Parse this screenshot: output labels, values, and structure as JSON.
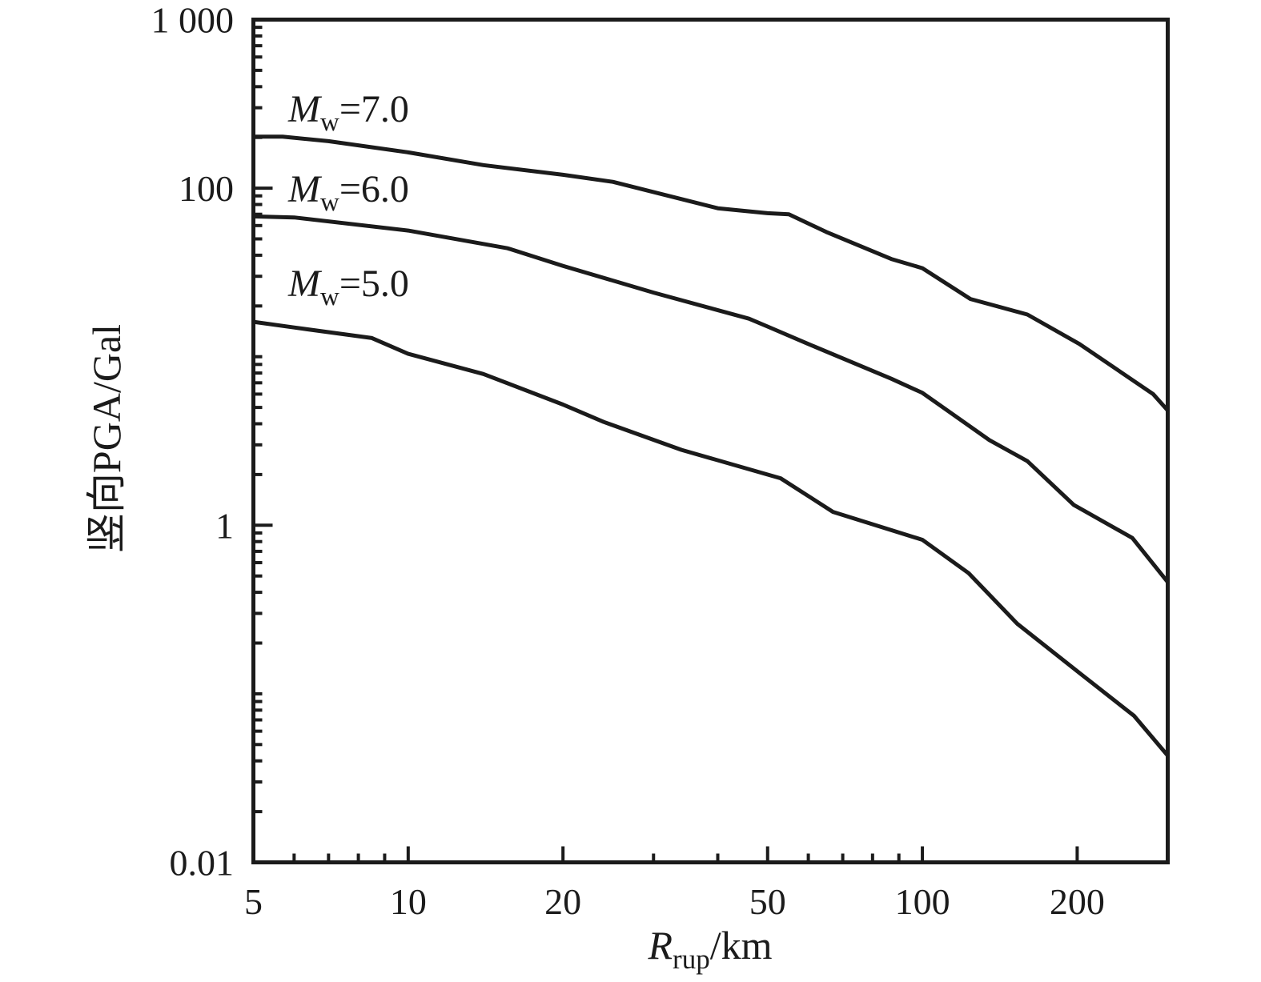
{
  "figure": {
    "background": "#ffffff",
    "ink_color": "#1b1b1b"
  },
  "chart_data": {
    "type": "line",
    "x_scale": "log",
    "y_scale": "log",
    "xlim": [
      5,
      300
    ],
    "ylim": [
      0.01,
      1000
    ],
    "grid": false,
    "legend": "inline-labels",
    "xlabel": {
      "var": "R",
      "sub": "rup",
      "rest": "/km"
    },
    "ylabel": "竖向PGA/Gal",
    "x_ticks": [
      {
        "value": 5,
        "label": "5"
      },
      {
        "value": 10,
        "label": "10"
      },
      {
        "value": 20,
        "label": "20"
      },
      {
        "value": 50,
        "label": "50"
      },
      {
        "value": 100,
        "label": "100"
      },
      {
        "value": 200,
        "label": "200"
      }
    ],
    "y_ticks": [
      {
        "value": 1000,
        "label": "1 000"
      },
      {
        "value": 100,
        "label": "100"
      },
      {
        "value": 1,
        "label": "1"
      },
      {
        "value": 0.01,
        "label": "0.01"
      }
    ],
    "series": [
      {
        "name": "Mw=7.0",
        "label": {
          "var": "M",
          "sub": "w",
          "rest": "=7.0"
        },
        "points": [
          [
            5,
            202
          ],
          [
            5.7,
            202
          ],
          [
            7,
            190
          ],
          [
            10,
            163
          ],
          [
            14,
            137
          ],
          [
            20,
            120
          ],
          [
            25,
            109
          ],
          [
            40,
            76
          ],
          [
            50,
            71
          ],
          [
            55,
            70
          ],
          [
            65,
            55
          ],
          [
            87,
            38
          ],
          [
            100,
            33.5
          ],
          [
            124,
            22
          ],
          [
            160,
            17.8
          ],
          [
            202,
            11.9
          ],
          [
            281,
            6.0
          ],
          [
            300,
            4.8
          ]
        ]
      },
      {
        "name": "Mw=6.0",
        "label": {
          "var": "M",
          "sub": "w",
          "rest": "=6.0"
        },
        "points": [
          [
            5,
            68
          ],
          [
            6,
            67
          ],
          [
            10,
            56
          ],
          [
            15.6,
            44
          ],
          [
            20,
            34.6
          ],
          [
            30,
            24
          ],
          [
            46,
            16.8
          ],
          [
            50,
            15.1
          ],
          [
            60,
            11.9
          ],
          [
            87,
            7.4
          ],
          [
            100,
            6.1
          ],
          [
            135,
            3.2
          ],
          [
            160,
            2.4
          ],
          [
            197,
            1.32
          ],
          [
            256,
            0.84
          ],
          [
            300,
            0.46
          ]
        ]
      },
      {
        "name": "Mw=5.0",
        "label": {
          "var": "M",
          "sub": "w",
          "rest": "=5.0"
        },
        "points": [
          [
            5,
            16.1
          ],
          [
            6,
            14.9
          ],
          [
            8.5,
            12.9
          ],
          [
            10,
            10.4
          ],
          [
            14,
            7.9
          ],
          [
            20,
            5.2
          ],
          [
            24,
            4.1
          ],
          [
            34,
            2.8
          ],
          [
            53,
            1.9
          ],
          [
            67,
            1.2
          ],
          [
            100,
            0.82
          ],
          [
            123,
            0.52
          ],
          [
            153,
            0.26
          ],
          [
            204,
            0.13
          ],
          [
            258,
            0.074
          ],
          [
            300,
            0.043
          ]
        ]
      }
    ]
  }
}
